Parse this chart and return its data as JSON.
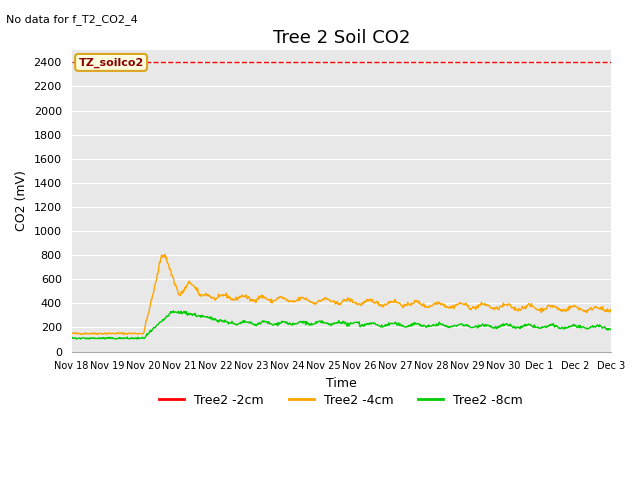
{
  "title": "Tree 2 Soil CO2",
  "no_data_text": "No data for f_T2_CO2_4",
  "ylabel": "CO2 (mV)",
  "xlabel": "Time",
  "ylim": [
    0,
    2500
  ],
  "yticks": [
    0,
    200,
    400,
    600,
    800,
    1000,
    1200,
    1400,
    1600,
    1800,
    2000,
    2200,
    2400
  ],
  "xtick_labels": [
    "Nov 18",
    "Nov 19",
    "Nov 20",
    "Nov 21",
    "Nov 22",
    "Nov 23",
    "Nov 24",
    "Nov 25",
    "Nov 26",
    "Nov 27",
    "Nov 28",
    "Nov 29",
    "Nov 30",
    "Dec 1",
    "Dec 2",
    "Dec 3"
  ],
  "fig_bg_color": "#ffffff",
  "plot_bg_color": "#e8e8e8",
  "legend_label": "TZ_soilco2",
  "line_red_color": "#ff0000",
  "line_orange_color": "#ffa500",
  "line_green_color": "#00cc00",
  "legend_entries": [
    "Tree2 -2cm",
    "Tree2 -4cm",
    "Tree2 -8cm"
  ],
  "legend_colors": [
    "#ff0000",
    "#ffa500",
    "#00cc00"
  ],
  "title_fontsize": 13,
  "axis_label_fontsize": 9,
  "tick_fontsize": 8,
  "xtick_fontsize": 7
}
